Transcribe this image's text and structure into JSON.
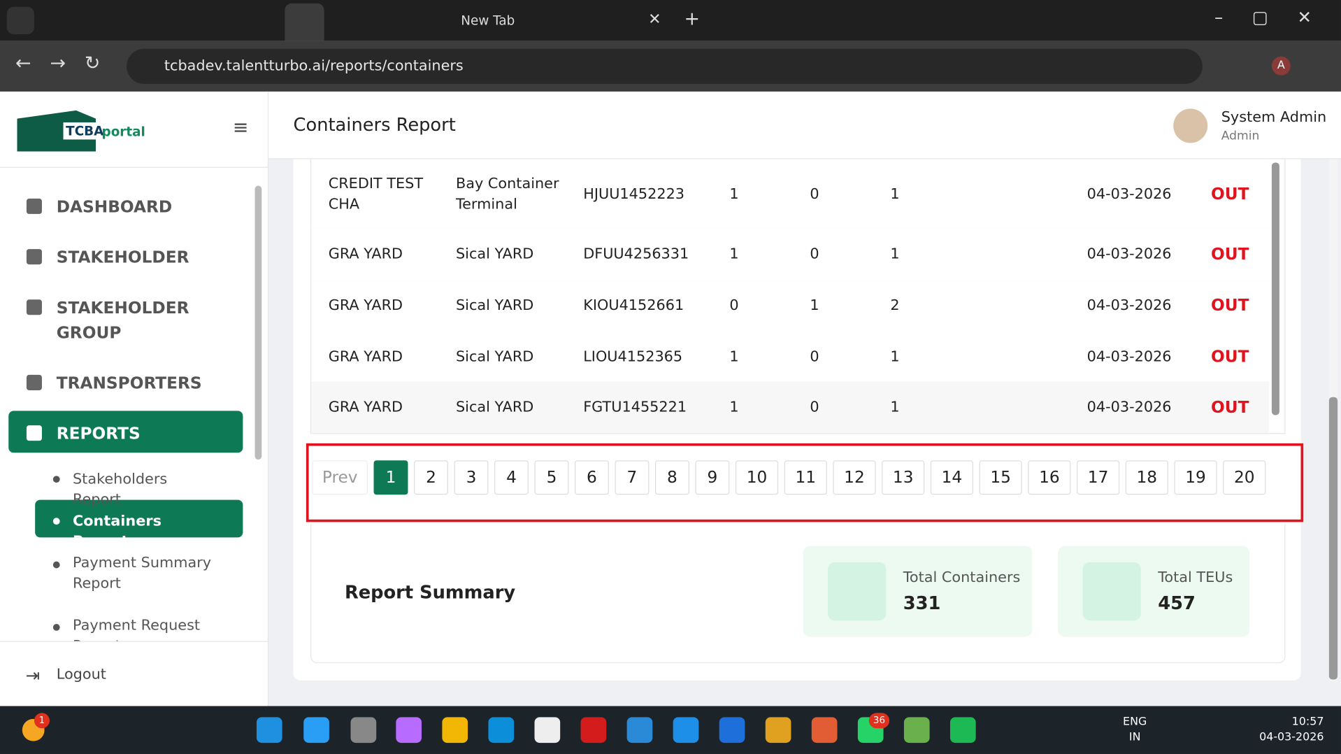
{
  "browser": {
    "tabs": [
      {
        "title": "New Tab"
      }
    ],
    "url": "tcbadev.talentturbo.ai/reports/containers",
    "profile": "A"
  },
  "sidebar": {
    "logo_main": "TCBA",
    "logo_sub": "portal",
    "items": [
      "DASHBOARD",
      "STAKEHOLDER",
      "STAKEHOLDER GROUP",
      "TRANSPORTERS",
      "REPORTS"
    ],
    "subitems": [
      "Stakeholders Report",
      "Containers Report",
      "Payment Summary Report",
      "Payment Request Report"
    ],
    "logout": "Logout"
  },
  "header": {
    "title": "Containers Report",
    "user_name": "System Admin",
    "user_role": "Admin"
  },
  "table": {
    "rows": [
      [
        "CREDIT TEST CHA",
        "Bay Container Terminal",
        "HJUU1452223",
        "1",
        "0",
        "1",
        "04-03-2026",
        "OUT"
      ],
      [
        "GRA YARD",
        "Sical YARD",
        "DFUU4256331",
        "1",
        "0",
        "1",
        "04-03-2026",
        "OUT"
      ],
      [
        "GRA YARD",
        "Sical YARD",
        "KIOU4152661",
        "0",
        "1",
        "2",
        "04-03-2026",
        "OUT"
      ],
      [
        "GRA YARD",
        "Sical YARD",
        "LIOU4152365",
        "1",
        "0",
        "1",
        "04-03-2026",
        "OUT"
      ],
      [
        "GRA YARD",
        "Sical YARD",
        "FGTU1455221",
        "1",
        "0",
        "1",
        "04-03-2026",
        "OUT"
      ]
    ]
  },
  "pagination": {
    "prev": "Prev",
    "pages": [
      "1",
      "2",
      "3",
      "4",
      "5",
      "6",
      "7",
      "8",
      "9",
      "10",
      "11",
      "12",
      "13",
      "14",
      "15",
      "16",
      "17",
      "18",
      "19",
      "20"
    ]
  },
  "summary": {
    "title": "Report Summary",
    "cards": [
      {
        "label": "Total Containers",
        "value": "331"
      },
      {
        "label": "Total TEUs",
        "value": "457"
      }
    ]
  },
  "taskbar": {
    "lang": "ENG",
    "region": "IN",
    "time": "10:57",
    "date": "04-03-2026",
    "badges": [
      "1",
      "36"
    ]
  }
}
